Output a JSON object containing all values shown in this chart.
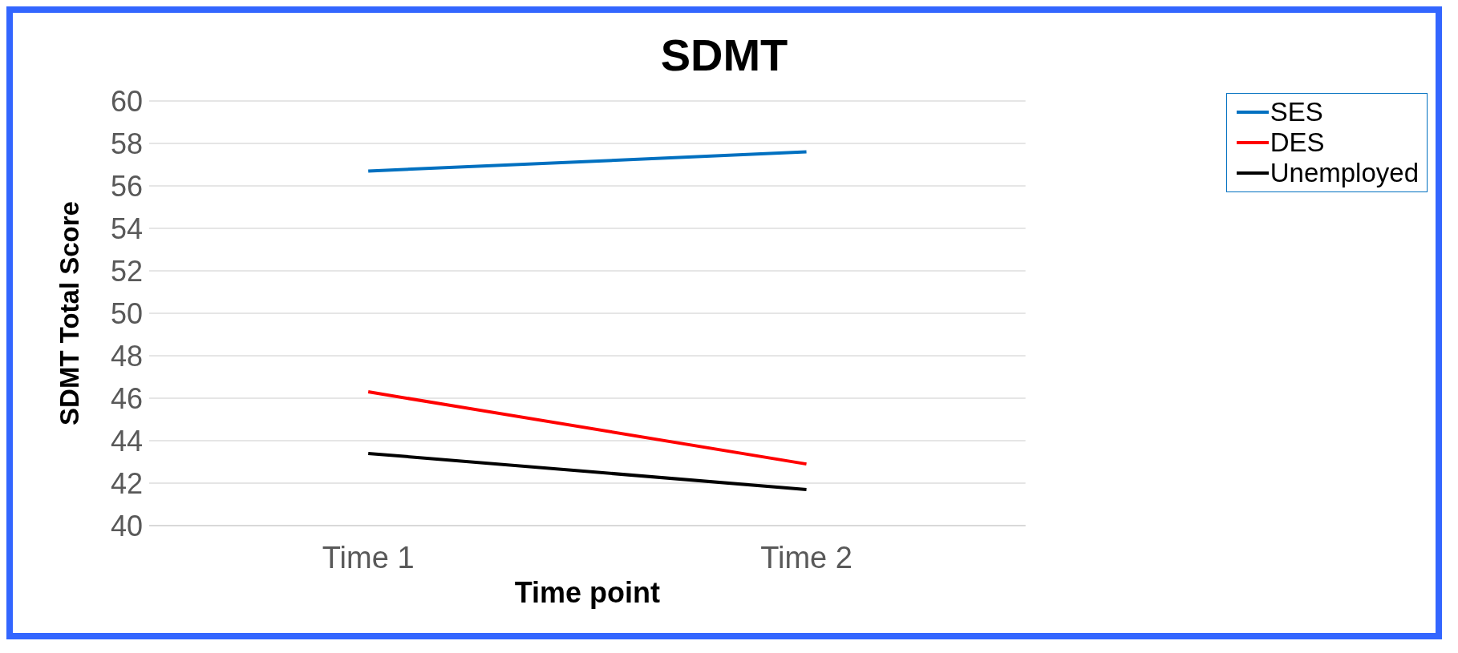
{
  "chart_data": {
    "type": "line",
    "title": "SDMT",
    "xlabel": "Time point",
    "ylabel": "SDMT Total Score",
    "categories": [
      "Time 1",
      "Time 2"
    ],
    "series": [
      {
        "name": "SES",
        "color": "#0070c0",
        "values": [
          56.7,
          57.6
        ]
      },
      {
        "name": "DES",
        "color": "#ff0000",
        "values": [
          46.3,
          42.9
        ]
      },
      {
        "name": "Unemployed",
        "color": "#000000",
        "values": [
          43.4,
          41.7
        ]
      }
    ],
    "ylim": [
      40,
      60
    ],
    "yticks": [
      40,
      42,
      44,
      46,
      48,
      50,
      52,
      54,
      56,
      58,
      60
    ],
    "grid": "y",
    "legend": "top right",
    "marker": "none",
    "line_style": "solid"
  }
}
